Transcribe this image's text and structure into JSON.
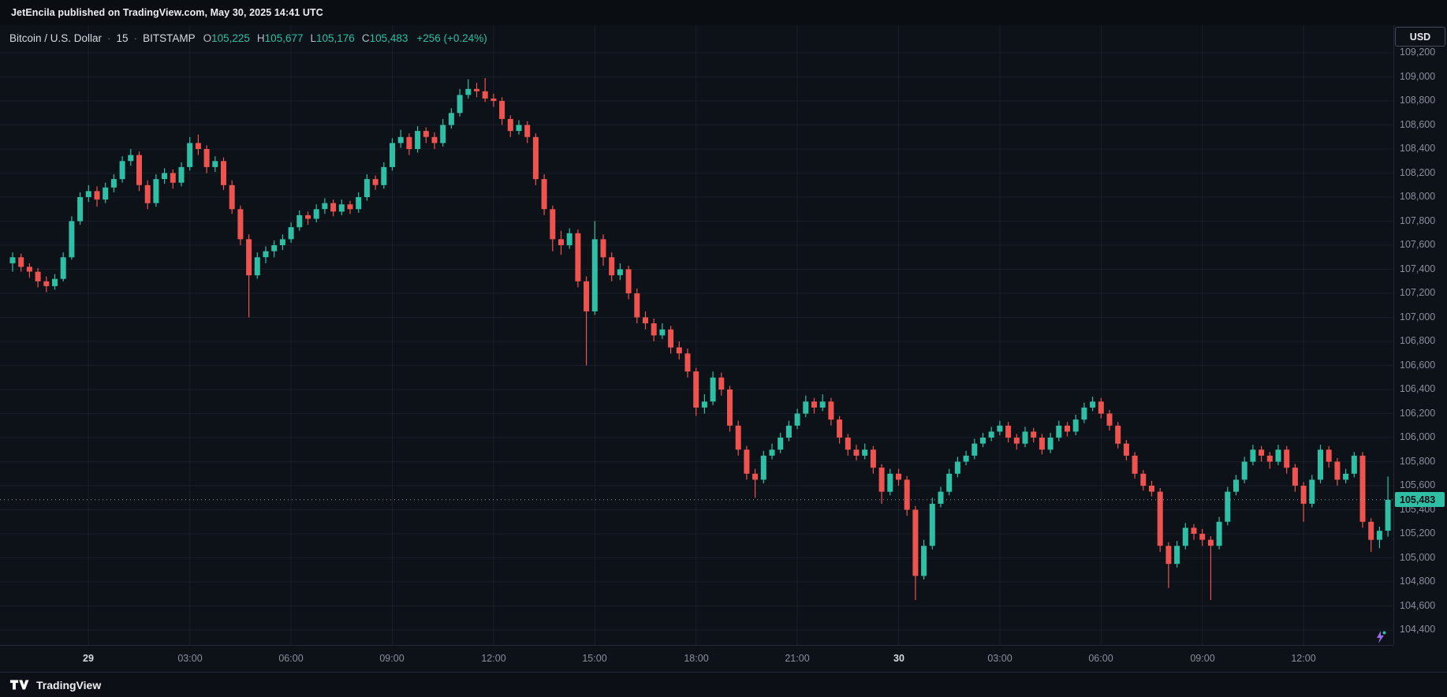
{
  "attribution": {
    "text": "JetEncila published on TradingView.com, May 30, 2025 14:41 UTC"
  },
  "header": {
    "symbol": "Bitcoin / U.S. Dollar",
    "separator": "·",
    "interval": "15",
    "exchange": "BITSTAMP",
    "ohlc": {
      "o_label": "O",
      "o": "105,225",
      "h_label": "H",
      "h": "105,677",
      "l_label": "L",
      "l": "105,176",
      "c_label": "C",
      "c": "105,483",
      "change": "+256 (+0.24%)"
    },
    "currency_button": "USD"
  },
  "footer": {
    "brand": "TradingView"
  },
  "colors": {
    "up": "#2ebfa5",
    "down": "#ef5350",
    "background": "#0d1118",
    "grid": "rgba(140,155,185,0.10)",
    "axis_text": "#8a8f9c",
    "current_label_bg": "#2ebfa5",
    "current_label_text": "#0b0e14"
  },
  "current_price": {
    "value": 105483,
    "label": "105,483"
  },
  "chart_data": {
    "type": "candlestick",
    "title": "Bitcoin / U.S. Dollar 15-minute candles (BITSTAMP)",
    "interval_minutes": 15,
    "y_axis": {
      "min": 104400,
      "max": 109200,
      "step": 200
    },
    "x_axis": {
      "labels": [
        {
          "text": "29",
          "index": 9,
          "major": true
        },
        {
          "text": "03:00",
          "index": 21,
          "major": false
        },
        {
          "text": "06:00",
          "index": 33,
          "major": false
        },
        {
          "text": "09:00",
          "index": 45,
          "major": false
        },
        {
          "text": "12:00",
          "index": 57,
          "major": false
        },
        {
          "text": "15:00",
          "index": 69,
          "major": false
        },
        {
          "text": "18:00",
          "index": 81,
          "major": false
        },
        {
          "text": "21:00",
          "index": 93,
          "major": false
        },
        {
          "text": "30",
          "index": 105,
          "major": true
        },
        {
          "text": "03:00",
          "index": 117,
          "major": false
        },
        {
          "text": "06:00",
          "index": 129,
          "major": false
        },
        {
          "text": "09:00",
          "index": 141,
          "major": false
        },
        {
          "text": "12:00",
          "index": 153,
          "major": false
        }
      ]
    },
    "candles": [
      [
        107450,
        107540,
        107380,
        107500
      ],
      [
        107500,
        107530,
        107380,
        107420
      ],
      [
        107420,
        107450,
        107330,
        107380
      ],
      [
        107380,
        107410,
        107250,
        107300
      ],
      [
        107300,
        107340,
        107210,
        107260
      ],
      [
        107260,
        107360,
        107230,
        107320
      ],
      [
        107320,
        107540,
        107300,
        107500
      ],
      [
        107500,
        107840,
        107480,
        107800
      ],
      [
        107800,
        108040,
        107770,
        108000
      ],
      [
        108000,
        108100,
        107960,
        108050
      ],
      [
        108050,
        108090,
        107920,
        107980
      ],
      [
        107980,
        108120,
        107950,
        108080
      ],
      [
        108080,
        108190,
        108040,
        108150
      ],
      [
        108150,
        108340,
        108120,
        108300
      ],
      [
        108300,
        108400,
        108260,
        108350
      ],
      [
        108350,
        108380,
        108050,
        108100
      ],
      [
        108100,
        108140,
        107900,
        107950
      ],
      [
        107950,
        108190,
        107920,
        108150
      ],
      [
        108150,
        108240,
        108110,
        108200
      ],
      [
        108200,
        108230,
        108070,
        108120
      ],
      [
        108120,
        108290,
        108090,
        108250
      ],
      [
        108250,
        108500,
        108220,
        108450
      ],
      [
        108450,
        108520,
        108350,
        108400
      ],
      [
        108400,
        108430,
        108200,
        108250
      ],
      [
        108250,
        108340,
        108210,
        108300
      ],
      [
        108300,
        108330,
        108060,
        108100
      ],
      [
        108100,
        108140,
        107860,
        107900
      ],
      [
        107900,
        107930,
        107600,
        107650
      ],
      [
        107650,
        107690,
        107000,
        107350
      ],
      [
        107350,
        107540,
        107320,
        107500
      ],
      [
        107500,
        107590,
        107450,
        107550
      ],
      [
        107550,
        107640,
        107500,
        107600
      ],
      [
        107600,
        107690,
        107560,
        107650
      ],
      [
        107650,
        107790,
        107620,
        107750
      ],
      [
        107750,
        107890,
        107720,
        107850
      ],
      [
        107850,
        107880,
        107770,
        107820
      ],
      [
        107820,
        107940,
        107790,
        107900
      ],
      [
        107900,
        107990,
        107860,
        107950
      ],
      [
        107950,
        107980,
        107840,
        107880
      ],
      [
        107880,
        107980,
        107850,
        107940
      ],
      [
        107940,
        107970,
        107860,
        107900
      ],
      [
        107900,
        108040,
        107870,
        108000
      ],
      [
        108000,
        108190,
        107970,
        108150
      ],
      [
        108150,
        108180,
        108060,
        108100
      ],
      [
        108100,
        108290,
        108070,
        108250
      ],
      [
        108250,
        108490,
        108220,
        108450
      ],
      [
        108450,
        108560,
        108410,
        108500
      ],
      [
        108500,
        108530,
        108350,
        108400
      ],
      [
        108400,
        108590,
        108370,
        108550
      ],
      [
        108550,
        108580,
        108450,
        108500
      ],
      [
        108500,
        108540,
        108400,
        108450
      ],
      [
        108450,
        108650,
        108420,
        108600
      ],
      [
        108600,
        108740,
        108570,
        108700
      ],
      [
        108700,
        108900,
        108670,
        108850
      ],
      [
        108850,
        108980,
        108820,
        108900
      ],
      [
        108900,
        108950,
        108830,
        108880
      ],
      [
        108880,
        108990,
        108790,
        108820
      ],
      [
        108820,
        108860,
        108750,
        108800
      ],
      [
        108800,
        108830,
        108600,
        108650
      ],
      [
        108650,
        108680,
        108500,
        108550
      ],
      [
        108550,
        108640,
        108520,
        108600
      ],
      [
        108600,
        108630,
        108450,
        108500
      ],
      [
        108500,
        108530,
        108100,
        108150
      ],
      [
        108150,
        108190,
        107850,
        107900
      ],
      [
        107900,
        107930,
        107550,
        107650
      ],
      [
        107650,
        107720,
        107520,
        107600
      ],
      [
        107600,
        107740,
        107570,
        107700
      ],
      [
        107700,
        107730,
        107250,
        107300
      ],
      [
        107300,
        107340,
        106600,
        107050
      ],
      [
        107050,
        107800,
        107020,
        107650
      ],
      [
        107650,
        107690,
        107430,
        107500
      ],
      [
        107500,
        107540,
        107300,
        107350
      ],
      [
        107350,
        107450,
        107310,
        107400
      ],
      [
        107400,
        107430,
        107150,
        107200
      ],
      [
        107200,
        107240,
        106950,
        107000
      ],
      [
        107000,
        107050,
        106900,
        106950
      ],
      [
        106950,
        106990,
        106800,
        106850
      ],
      [
        106850,
        106950,
        106820,
        106900
      ],
      [
        106900,
        106930,
        106700,
        106750
      ],
      [
        106750,
        106800,
        106650,
        106700
      ],
      [
        106700,
        106740,
        106500,
        106550
      ],
      [
        106550,
        106580,
        106180,
        106250
      ],
      [
        106250,
        106360,
        106200,
        106300
      ],
      [
        106300,
        106550,
        106270,
        106500
      ],
      [
        106500,
        106540,
        106350,
        106400
      ],
      [
        106400,
        106430,
        106050,
        106100
      ],
      [
        106100,
        106140,
        105850,
        105900
      ],
      [
        105900,
        105930,
        105650,
        105700
      ],
      [
        105700,
        105740,
        105500,
        105650
      ],
      [
        105650,
        105890,
        105620,
        105850
      ],
      [
        105850,
        105950,
        105820,
        105900
      ],
      [
        105900,
        106040,
        105870,
        106000
      ],
      [
        106000,
        106140,
        105970,
        106100
      ],
      [
        106100,
        106240,
        106070,
        106200
      ],
      [
        106200,
        106350,
        106170,
        106300
      ],
      [
        106300,
        106330,
        106200,
        106250
      ],
      [
        106250,
        106360,
        106220,
        106300
      ],
      [
        106300,
        106330,
        106100,
        106150
      ],
      [
        106150,
        106180,
        105950,
        106000
      ],
      [
        106000,
        106030,
        105850,
        105900
      ],
      [
        105900,
        105940,
        105810,
        105850
      ],
      [
        105850,
        105950,
        105820,
        105900
      ],
      [
        105900,
        105930,
        105700,
        105750
      ],
      [
        105750,
        105780,
        105450,
        105550
      ],
      [
        105550,
        105740,
        105520,
        105700
      ],
      [
        105700,
        105740,
        105600,
        105650
      ],
      [
        105650,
        105680,
        105350,
        105400
      ],
      [
        105400,
        105430,
        104650,
        104850
      ],
      [
        104850,
        105150,
        104820,
        105100
      ],
      [
        105100,
        105500,
        105070,
        105450
      ],
      [
        105450,
        105590,
        105420,
        105550
      ],
      [
        105550,
        105740,
        105520,
        105700
      ],
      [
        105700,
        105840,
        105670,
        105800
      ],
      [
        105800,
        105890,
        105770,
        105850
      ],
      [
        105850,
        105990,
        105820,
        105950
      ],
      [
        105950,
        106040,
        105920,
        106000
      ],
      [
        106000,
        106090,
        105970,
        106050
      ],
      [
        106050,
        106140,
        106020,
        106100
      ],
      [
        106100,
        106130,
        105960,
        106000
      ],
      [
        106000,
        106030,
        105900,
        105950
      ],
      [
        105950,
        106090,
        105920,
        106050
      ],
      [
        106050,
        106080,
        105960,
        106000
      ],
      [
        106000,
        106030,
        105860,
        105900
      ],
      [
        105900,
        106040,
        105870,
        106000
      ],
      [
        106000,
        106140,
        105970,
        106100
      ],
      [
        106100,
        106130,
        106010,
        106050
      ],
      [
        106050,
        106190,
        106020,
        106150
      ],
      [
        106150,
        106290,
        106120,
        106250
      ],
      [
        106250,
        106340,
        106220,
        106300
      ],
      [
        106300,
        106330,
        106160,
        106200
      ],
      [
        106200,
        106230,
        106060,
        106100
      ],
      [
        106100,
        106130,
        105910,
        105950
      ],
      [
        105950,
        105980,
        105810,
        105850
      ],
      [
        105850,
        105880,
        105660,
        105700
      ],
      [
        105700,
        105730,
        105560,
        105600
      ],
      [
        105600,
        105640,
        105510,
        105550
      ],
      [
        105550,
        105580,
        105050,
        105100
      ],
      [
        105100,
        105130,
        104750,
        104950
      ],
      [
        104950,
        105140,
        104920,
        105100
      ],
      [
        105100,
        105290,
        105070,
        105250
      ],
      [
        105250,
        105280,
        105150,
        105200
      ],
      [
        105200,
        105240,
        105100,
        105150
      ],
      [
        105150,
        105180,
        104650,
        105100
      ],
      [
        105100,
        105340,
        105070,
        105300
      ],
      [
        105300,
        105590,
        105270,
        105550
      ],
      [
        105550,
        105690,
        105520,
        105650
      ],
      [
        105650,
        105840,
        105620,
        105800
      ],
      [
        105800,
        105940,
        105770,
        105900
      ],
      [
        105900,
        105930,
        105800,
        105850
      ],
      [
        105850,
        105880,
        105740,
        105800
      ],
      [
        105800,
        105940,
        105770,
        105900
      ],
      [
        105900,
        105930,
        105700,
        105750
      ],
      [
        105750,
        105780,
        105550,
        105600
      ],
      [
        105600,
        105630,
        105300,
        105450
      ],
      [
        105450,
        105690,
        105420,
        105650
      ],
      [
        105650,
        105940,
        105620,
        105900
      ],
      [
        105900,
        105930,
        105750,
        105800
      ],
      [
        105800,
        105830,
        105600,
        105650
      ],
      [
        105650,
        105740,
        105620,
        105700
      ],
      [
        105700,
        105880,
        105670,
        105850
      ],
      [
        105850,
        105880,
        105250,
        105300
      ],
      [
        105300,
        105330,
        105050,
        105150
      ],
      [
        105150,
        105260,
        105080,
        105225
      ],
      [
        105225,
        105677,
        105176,
        105483
      ]
    ]
  }
}
